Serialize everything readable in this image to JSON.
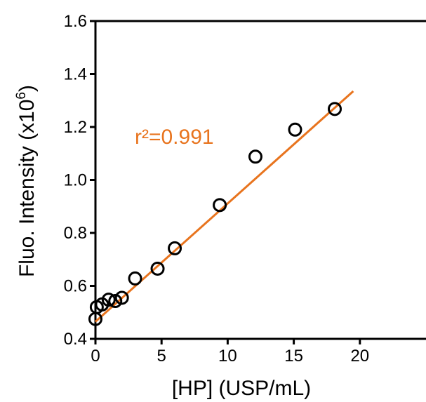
{
  "chart_data": {
    "type": "scatter",
    "xlabel": "[HP] (USP/mL)",
    "ylabel_main": "Fluo. Intensity (x10",
    "ylabel_sup": "6",
    "ylabel_close": ")",
    "xlim": [
      0,
      25
    ],
    "ylim": [
      0.4,
      1.6
    ],
    "xticks": [
      0,
      5,
      10,
      15,
      20
    ],
    "xtick_labels": [
      "0",
      "5",
      "10",
      "15",
      "20"
    ],
    "yticks": [
      0.4,
      0.6,
      0.8,
      1.0,
      1.2,
      1.4,
      1.6
    ],
    "ytick_labels": [
      "0.4",
      "0.6",
      "0.8",
      "1.0",
      "1.2",
      "1.4",
      "1.6"
    ],
    "points": {
      "x": [
        0.0,
        0.1,
        0.5,
        1.0,
        1.5,
        2.0,
        3.0,
        4.7,
        6.0,
        9.4,
        12.1,
        15.1,
        18.1
      ],
      "y": [
        0.475,
        0.52,
        0.53,
        0.548,
        0.543,
        0.555,
        0.628,
        0.665,
        0.742,
        0.905,
        1.088,
        1.19,
        1.268
      ]
    },
    "fit_line": {
      "x": [
        0.0,
        19.5
      ],
      "y": [
        0.465,
        1.335
      ]
    },
    "annotation": "r²=0.991",
    "grid": false,
    "colors": {
      "fit": "#E8741E",
      "marker_edge": "#000000",
      "axes": "#000000"
    }
  }
}
